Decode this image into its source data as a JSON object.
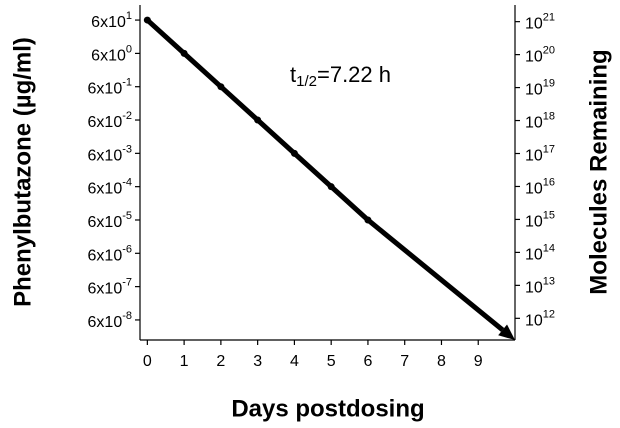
{
  "chart_data": {
    "type": "line",
    "x_label": "Days postdosing",
    "y_label": "Phenylbutazone (µg/ml)",
    "y2_label": "Molecules Remaining",
    "annotation": {
      "base": "t",
      "sub": "1/2",
      "text": "=7.22 h"
    },
    "series": [
      {
        "name": "Phenylbutazone",
        "color": "#000000",
        "x": [
          0,
          1,
          2,
          3,
          4,
          5,
          6
        ],
        "values": [
          60,
          6,
          0.6,
          0.06,
          0.006,
          0.0006,
          6e-05
        ]
      }
    ],
    "xlim": [
      -0.2,
      10
    ],
    "xticks": [
      0,
      1,
      2,
      3,
      4,
      5,
      6,
      7,
      8,
      9
    ],
    "ylim": [
      1.5e-08,
      170
    ],
    "ylog": true,
    "yticks": [
      {
        "value": 60,
        "label": "6x10",
        "exponent": "1"
      },
      {
        "value": 6,
        "label": "6x10",
        "exponent": "0"
      },
      {
        "value": 0.6,
        "label": "6x10",
        "exponent": "-1"
      },
      {
        "value": 0.06,
        "label": "6x10",
        "exponent": "-2"
      },
      {
        "value": 0.006,
        "label": "6x10",
        "exponent": "-3"
      },
      {
        "value": 0.0006,
        "label": "6x10",
        "exponent": "-4"
      },
      {
        "value": 6e-05,
        "label": "6x10",
        "exponent": "-5"
      },
      {
        "value": 6e-06,
        "label": "6x10",
        "exponent": "-6"
      },
      {
        "value": 6e-07,
        "label": "6x10",
        "exponent": "-7"
      },
      {
        "value": 6e-08,
        "label": "6x10",
        "exponent": "-8"
      }
    ],
    "y2lim": [
      220000000000.0,
      3.2e+21
    ],
    "y2ticks": [
      {
        "value": 1e+21,
        "label": "10",
        "exponent": "21"
      },
      {
        "value": 1e+20,
        "label": "10",
        "exponent": "20"
      },
      {
        "value": 1e+19,
        "label": "10",
        "exponent": "19"
      },
      {
        "value": 1e+18,
        "label": "10",
        "exponent": "18"
      },
      {
        "value": 1e+17,
        "label": "10",
        "exponent": "17"
      },
      {
        "value": 1e+16,
        "label": "10",
        "exponent": "16"
      },
      {
        "value": 1000000000000000.0,
        "label": "10",
        "exponent": "15"
      },
      {
        "value": 100000000000000.0,
        "label": "10",
        "exponent": "14"
      },
      {
        "value": 10000000000000.0,
        "label": "10",
        "exponent": "13"
      },
      {
        "value": 1000000000000.0,
        "label": "10",
        "exponent": "12"
      }
    ],
    "grid": false
  }
}
